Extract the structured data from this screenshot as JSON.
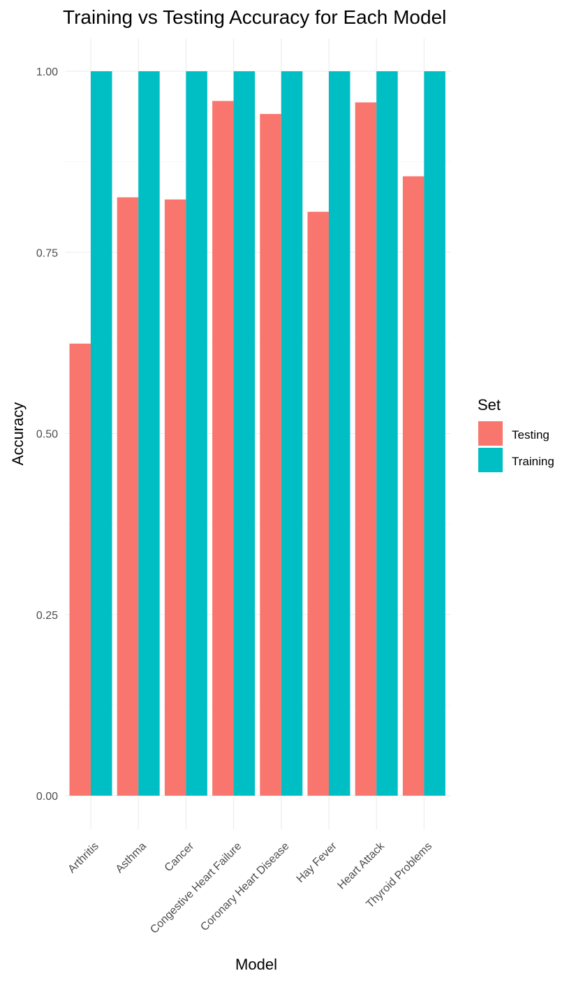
{
  "chart_data": {
    "type": "bar",
    "title": "Training vs Testing Accuracy for Each Model",
    "xlabel": "Model",
    "ylabel": "Accuracy",
    "categories": [
      "Arthritis",
      "Asthma",
      "Cancer",
      "Congestive Heart Failure",
      "Coronary Heart Disease",
      "Hay Fever",
      "Heart Attack",
      "Thyroid Problems"
    ],
    "series": [
      {
        "name": "Testing",
        "color": "#F8766D",
        "values": [
          0.624,
          0.826,
          0.823,
          0.959,
          0.941,
          0.806,
          0.957,
          0.855
        ]
      },
      {
        "name": "Training",
        "color": "#00BFC4",
        "values": [
          1.0,
          1.0,
          1.0,
          1.0,
          1.0,
          1.0,
          1.0,
          1.0
        ]
      }
    ],
    "ylim": [
      0,
      1.0
    ],
    "yticks": [
      0.0,
      0.25,
      0.5,
      0.75,
      1.0
    ],
    "ytick_labels": [
      "0.00",
      "0.25",
      "0.50",
      "0.75",
      "1.00"
    ],
    "grid": true,
    "legend": {
      "title": "Set",
      "position": "right"
    }
  }
}
